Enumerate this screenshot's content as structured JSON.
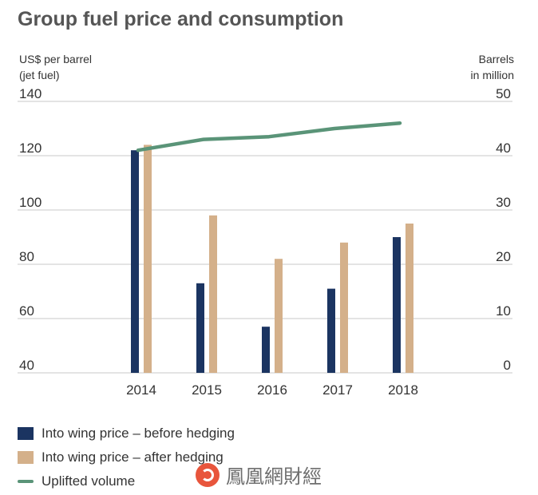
{
  "title": "Group fuel price and consumption",
  "left_axis_label": [
    "US$ per barrel",
    "(jet fuel)"
  ],
  "right_axis_label": [
    "Barrels",
    "in million"
  ],
  "legend": [
    {
      "label": "Into wing price – before hedging",
      "color": "#1b3461",
      "kind": "box"
    },
    {
      "label": "Into wing price – after hedging",
      "color": "#d4b08a",
      "kind": "box"
    },
    {
      "label": "Uplifted volume",
      "color": "#5a9478",
      "kind": "line"
    }
  ],
  "watermark": "鳳凰網財經",
  "chart_data": {
    "type": "bar",
    "categories": [
      "2014",
      "2015",
      "2016",
      "2017",
      "2018"
    ],
    "series": [
      {
        "name": "Into wing price – before hedging",
        "values": [
          122,
          73,
          57,
          71,
          90
        ],
        "axis": "left",
        "color": "#1b3461"
      },
      {
        "name": "Into wing price – after hedging",
        "values": [
          124,
          98,
          82,
          88,
          95
        ],
        "axis": "left",
        "color": "#d4b08a"
      },
      {
        "name": "Uplifted volume",
        "type": "line",
        "values": [
          41.0,
          43.0,
          43.5,
          45.0,
          46.0
        ],
        "axis": "right",
        "color": "#5a9478"
      }
    ],
    "left_axis": {
      "ticks": [
        40,
        60,
        80,
        100,
        120,
        140
      ],
      "ylim": [
        40,
        140
      ]
    },
    "right_axis": {
      "ticks": [
        0,
        10,
        20,
        30,
        40,
        50
      ],
      "ylim": [
        0,
        50
      ]
    },
    "grid": true
  }
}
